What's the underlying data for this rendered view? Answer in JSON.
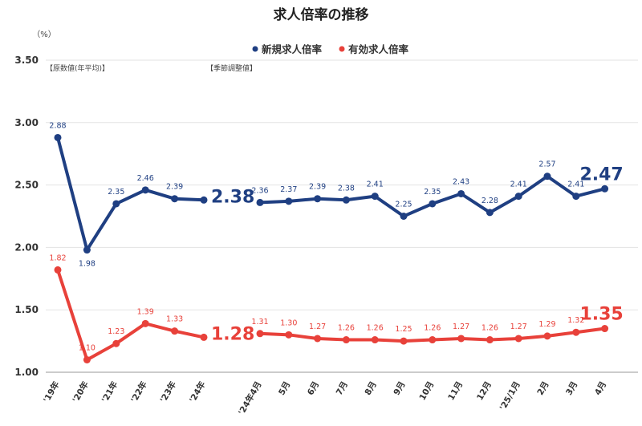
{
  "chart_data": {
    "type": "line",
    "title": "求人倍率の推移",
    "unit_label": "（%）",
    "ylim": [
      1.0,
      3.5
    ],
    "yticks": [
      "1.00",
      "1.50",
      "2.00",
      "2.50",
      "3.00",
      "3.50"
    ],
    "grid": true,
    "legend_position": "top-center",
    "annotations": {
      "annual": "【原数値(年平均)】",
      "monthly": "【季節調整値】"
    },
    "categories": [
      "'19年",
      "'20年",
      "'21年",
      "'22年",
      "'23年",
      "'24年",
      "'24年4月",
      "5月",
      "6月",
      "7月",
      "8月",
      "9月",
      "10月",
      "11月",
      "12月",
      "'25/1月",
      "2月",
      "3月",
      "4月"
    ],
    "series": [
      {
        "name": "新規求人倍率",
        "color": "#1f3f82",
        "values": [
          2.88,
          1.98,
          2.35,
          2.46,
          2.39,
          2.38,
          2.36,
          2.37,
          2.39,
          2.38,
          2.41,
          2.25,
          2.35,
          2.43,
          2.28,
          2.41,
          2.57,
          2.41,
          2.47
        ],
        "labels": [
          "2.88",
          "1.98",
          "2.35",
          "2.46",
          "2.39",
          "2.38",
          "2.36",
          "2.37",
          "2.39",
          "2.38",
          "2.41",
          "2.25",
          "2.35",
          "2.43",
          "2.28",
          "2.41",
          "2.57",
          "2.41",
          "2.47"
        ]
      },
      {
        "name": "有効求人倍率",
        "color": "#e8413a",
        "values": [
          1.82,
          1.1,
          1.23,
          1.39,
          1.33,
          1.28,
          1.31,
          1.3,
          1.27,
          1.26,
          1.26,
          1.25,
          1.26,
          1.27,
          1.26,
          1.27,
          1.29,
          1.32,
          1.35
        ],
        "labels": [
          "1.82",
          "1.10",
          "1.23",
          "1.39",
          "1.33",
          "1.28",
          "1.31",
          "1.30",
          "1.27",
          "1.26",
          "1.26",
          "1.25",
          "1.26",
          "1.27",
          "1.26",
          "1.27",
          "1.29",
          "1.32",
          "1.35"
        ]
      }
    ]
  }
}
